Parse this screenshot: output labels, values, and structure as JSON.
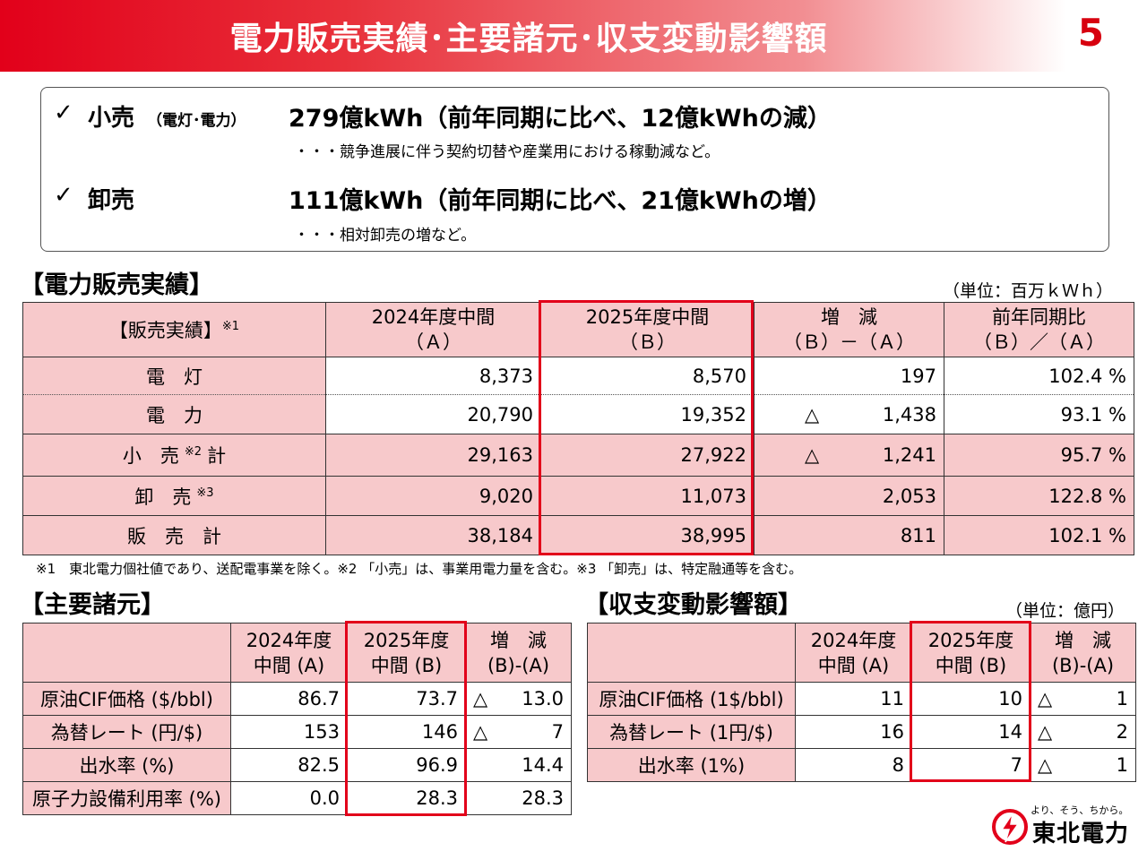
{
  "header": {
    "title": "電力販売実績･主要諸元･収支変動影響額",
    "page_number": "5"
  },
  "summary": {
    "items": [
      {
        "check": "✓",
        "label": "小売",
        "sub": "（電灯･電力）",
        "main": "279億kWh（前年同期に比べ、12億kWhの減）",
        "note": "・・・競争進展に伴う契約切替や産業用における稼動減など。"
      },
      {
        "check": "✓",
        "label": "卸売",
        "sub": "",
        "main": "111億kWh（前年同期に比べ、21億kWhの増）",
        "note": "・・・相対卸売の増など。"
      }
    ]
  },
  "sales": {
    "title": "【電力販売実績】",
    "unit": "（単位：百万ｋＷｈ）",
    "headers": [
      {
        "l1": "【販売実績】",
        "sup": "※1",
        "l2": ""
      },
      {
        "l1": "2024年度中間",
        "l2": "（Ａ）"
      },
      {
        "l1": "2025年度中間",
        "l2": "（Ｂ）"
      },
      {
        "l1": "増　減",
        "l2": "（Ｂ）－（Ａ）"
      },
      {
        "l1": "前年同期比",
        "l2": "（Ｂ）／（Ａ）"
      }
    ],
    "rows": [
      {
        "label": "電　灯",
        "sup": "",
        "label2": "",
        "a": "8,373",
        "b": "8,570",
        "tri": "",
        "diff": "197",
        "ratio": "102.4 %"
      },
      {
        "label": "電　力",
        "sup": "",
        "label2": "",
        "a": "20,790",
        "b": "19,352",
        "tri": "△",
        "diff": "1,438",
        "ratio": "93.1 %"
      },
      {
        "label": "小　売",
        "sup": "※2",
        "label2": "計",
        "a": "29,163",
        "b": "27,922",
        "tri": "△",
        "diff": "1,241",
        "ratio": "95.7 %"
      },
      {
        "label": "卸　売",
        "sup": "※3",
        "label2": "",
        "a": "9,020",
        "b": "11,073",
        "tri": "",
        "diff": "2,053",
        "ratio": "122.8 %"
      },
      {
        "label": "販　売　計",
        "sup": "",
        "label2": "",
        "a": "38,184",
        "b": "38,995",
        "tri": "",
        "diff": "811",
        "ratio": "102.1 %"
      }
    ],
    "footnote": "※1　東北電力個社値であり、送配電事業を除く。※2 「小売」は、事業用電力量を含む。※3 「卸売」は、特定融通等を含む。"
  },
  "spec": {
    "title": "【主要諸元】",
    "headers": [
      {
        "l1": "",
        "l2": ""
      },
      {
        "l1": "2024年度",
        "l2": "中間 (A)"
      },
      {
        "l1": "2025年度",
        "l2": "中間 (B)"
      },
      {
        "l1": "増　減",
        "l2": "(B)-(A)"
      }
    ],
    "rows": [
      {
        "label": "原油CIF価格 ($/bbl)",
        "a": "86.7",
        "b": "73.7",
        "tri": "△",
        "diff": "13.0"
      },
      {
        "label": "為替レート (円/$)",
        "a": "153",
        "b": "146",
        "tri": "△",
        "diff": "7"
      },
      {
        "label": "出水率 (%)",
        "a": "82.5",
        "b": "96.9",
        "tri": "",
        "diff": "14.4"
      },
      {
        "label": "原子力設備利用率 (%)",
        "a": "0.0",
        "b": "28.3",
        "tri": "",
        "diff": "28.3"
      }
    ]
  },
  "impact": {
    "title": "【収支変動影響額】",
    "unit": "（単位：億円）",
    "headers": [
      {
        "l1": "",
        "l2": ""
      },
      {
        "l1": "2024年度",
        "l2": "中間 (A)"
      },
      {
        "l1": "2025年度",
        "l2": "中間 (B)"
      },
      {
        "l1": "増　減",
        "l2": "(B)-(A)"
      }
    ],
    "rows": [
      {
        "label": "原油CIF価格 (1$/bbl)",
        "a": "11",
        "b": "10",
        "tri": "△",
        "diff": "1"
      },
      {
        "label": "為替レート (1円/$)",
        "a": "16",
        "b": "14",
        "tri": "△",
        "diff": "2"
      },
      {
        "label": "出水率 (1%)",
        "a": "8",
        "b": "7",
        "tri": "△",
        "diff": "1"
      }
    ]
  },
  "logo": {
    "slogan": "より、そう、ちから。",
    "name": "東北電力"
  },
  "colors": {
    "brand_red": "#e2001a",
    "table_pink": "#f7c9cb"
  }
}
